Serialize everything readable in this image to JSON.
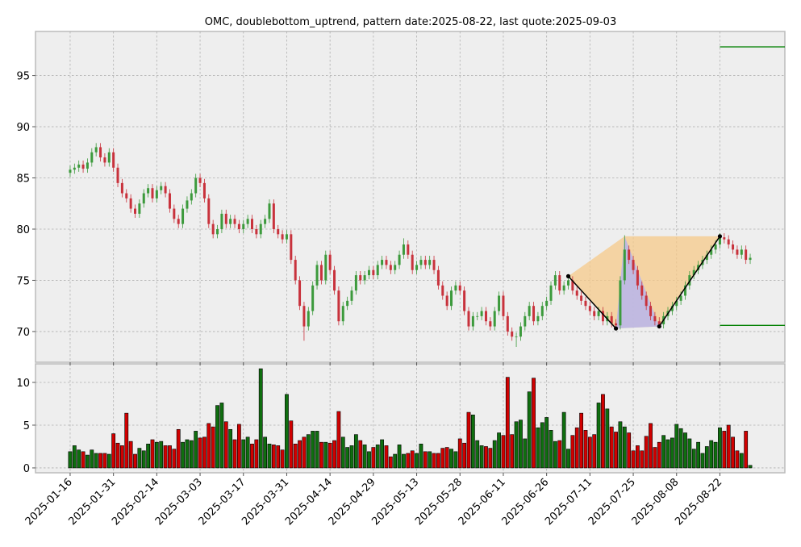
{
  "chart_data": {
    "type": "candlestick",
    "title": "OMC, doublebottom_uptrend, pattern date:2025-08-22, last quote:2025-09-03",
    "x": [
      "2025-01-16",
      "2025-01-17",
      "2025-01-21",
      "2025-01-22",
      "2025-01-23",
      "2025-01-24",
      "2025-01-27",
      "2025-01-28",
      "2025-01-29",
      "2025-01-30",
      "2025-01-31",
      "2025-02-03",
      "2025-02-04",
      "2025-02-05",
      "2025-02-06",
      "2025-02-07",
      "2025-02-10",
      "2025-02-11",
      "2025-02-12",
      "2025-02-13",
      "2025-02-14",
      "2025-02-18",
      "2025-02-19",
      "2025-02-20",
      "2025-02-21",
      "2025-02-24",
      "2025-02-25",
      "2025-02-26",
      "2025-02-27",
      "2025-02-28",
      "2025-03-03",
      "2025-03-04",
      "2025-03-05",
      "2025-03-06",
      "2025-03-07",
      "2025-03-10",
      "2025-03-11",
      "2025-03-12",
      "2025-03-13",
      "2025-03-14",
      "2025-03-17",
      "2025-03-18",
      "2025-03-19",
      "2025-03-20",
      "2025-03-21",
      "2025-03-24",
      "2025-03-25",
      "2025-03-26",
      "2025-03-27",
      "2025-03-28",
      "2025-03-31",
      "2025-04-01",
      "2025-04-02",
      "2025-04-03",
      "2025-04-04",
      "2025-04-07",
      "2025-04-08",
      "2025-04-09",
      "2025-04-10",
      "2025-04-11",
      "2025-04-14",
      "2025-04-15",
      "2025-04-16",
      "2025-04-17",
      "2025-04-21",
      "2025-04-22",
      "2025-04-23",
      "2025-04-24",
      "2025-04-25",
      "2025-04-28",
      "2025-04-29",
      "2025-04-30",
      "2025-05-01",
      "2025-05-02",
      "2025-05-05",
      "2025-05-06",
      "2025-05-07",
      "2025-05-08",
      "2025-05-09",
      "2025-05-12",
      "2025-05-13",
      "2025-05-14",
      "2025-05-15",
      "2025-05-16",
      "2025-05-19",
      "2025-05-20",
      "2025-05-21",
      "2025-05-22",
      "2025-05-23",
      "2025-05-27",
      "2025-05-28",
      "2025-05-29",
      "2025-05-30",
      "2025-06-02",
      "2025-06-03",
      "2025-06-04",
      "2025-06-05",
      "2025-06-06",
      "2025-06-09",
      "2025-06-10",
      "2025-06-11",
      "2025-06-12",
      "2025-06-13",
      "2025-06-16",
      "2025-06-17",
      "2025-06-18",
      "2025-06-20",
      "2025-06-23",
      "2025-06-24",
      "2025-06-25",
      "2025-06-26",
      "2025-06-27",
      "2025-06-30",
      "2025-07-01",
      "2025-07-02",
      "2025-07-03",
      "2025-07-07",
      "2025-07-08",
      "2025-07-09",
      "2025-07-10",
      "2025-07-11",
      "2025-07-14",
      "2025-07-15",
      "2025-07-16",
      "2025-07-17",
      "2025-07-18",
      "2025-07-21",
      "2025-07-22",
      "2025-07-23",
      "2025-07-24",
      "2025-07-25",
      "2025-07-28",
      "2025-07-29",
      "2025-07-30",
      "2025-07-31",
      "2025-08-01",
      "2025-08-04",
      "2025-08-05",
      "2025-08-06",
      "2025-08-07",
      "2025-08-08",
      "2025-08-11",
      "2025-08-12",
      "2025-08-13",
      "2025-08-14",
      "2025-08-15",
      "2025-08-18",
      "2025-08-19",
      "2025-08-20",
      "2025-08-21",
      "2025-08-22",
      "2025-08-25",
      "2025-08-26",
      "2025-08-27",
      "2025-08-28",
      "2025-08-29",
      "2025-09-02",
      "2025-09-03"
    ],
    "open": [
      85.5,
      85.8,
      86.0,
      86.3,
      85.9,
      86.5,
      87.5,
      88.0,
      87.0,
      86.5,
      87.5,
      86.0,
      84.5,
      83.5,
      83.0,
      82.0,
      81.5,
      82.5,
      83.5,
      84.0,
      83.0,
      83.8,
      84.2,
      83.5,
      82.0,
      81.0,
      80.5,
      82.0,
      82.8,
      83.5,
      85.0,
      84.5,
      83.0,
      80.5,
      79.5,
      80.0,
      81.5,
      80.5,
      81.0,
      80.5,
      80.0,
      80.5,
      81.0,
      80.0,
      79.5,
      80.5,
      81.0,
      82.5,
      80.0,
      79.5,
      79.0,
      79.5,
      77.0,
      75.0,
      72.5,
      70.5,
      72.0,
      74.5,
      76.5,
      75.0,
      77.5,
      76.0,
      74.0,
      71.0,
      72.5,
      73.0,
      74.0,
      75.5,
      75.0,
      75.5,
      76.0,
      75.5,
      76.5,
      77.0,
      76.5,
      76.0,
      76.5,
      77.5,
      78.5,
      77.5,
      76.0,
      76.5,
      77.0,
      76.5,
      77.0,
      76.0,
      74.5,
      73.5,
      72.5,
      74.0,
      74.5,
      74.0,
      72.0,
      70.5,
      71.5,
      71.5,
      72.0,
      71.0,
      70.5,
      72.0,
      73.5,
      71.5,
      70.0,
      69.5,
      69.5,
      70.5,
      71.5,
      72.5,
      71.0,
      71.5,
      72.5,
      73.0,
      74.5,
      75.5,
      74.0,
      74.5,
      75.0,
      74.0,
      73.5,
      73.0,
      72.5,
      72.0,
      71.5,
      72.0,
      71.0,
      71.5,
      70.8,
      70.6,
      75.0,
      78.0,
      77.0,
      76.0,
      74.5,
      73.5,
      72.5,
      71.5,
      71.0,
      70.7,
      71.5,
      72.0,
      72.5,
      73.0,
      73.5,
      74.5,
      75.5,
      76.0,
      76.5,
      77.0,
      77.5,
      78.0,
      78.5,
      79.2,
      79.0,
      78.5,
      78.0,
      77.5,
      78.0,
      77.0
    ],
    "high": [
      86.2,
      86.4,
      86.7,
      86.7,
      86.9,
      87.9,
      88.4,
      88.4,
      87.4,
      87.9,
      87.9,
      86.4,
      84.9,
      83.9,
      83.4,
      82.4,
      82.9,
      83.9,
      84.4,
      84.4,
      84.2,
      84.6,
      84.6,
      83.9,
      82.4,
      81.4,
      82.4,
      83.2,
      83.9,
      85.4,
      85.4,
      84.9,
      83.4,
      80.9,
      80.4,
      81.9,
      81.9,
      81.4,
      81.4,
      80.9,
      80.9,
      81.4,
      81.4,
      80.4,
      80.9,
      81.4,
      82.9,
      82.9,
      80.4,
      79.9,
      79.9,
      79.9,
      77.4,
      75.4,
      72.9,
      72.4,
      74.9,
      76.9,
      76.9,
      77.9,
      77.9,
      76.4,
      74.4,
      72.9,
      73.4,
      74.4,
      75.9,
      75.9,
      75.9,
      76.4,
      76.4,
      76.9,
      77.4,
      77.4,
      76.9,
      76.9,
      77.9,
      79.1,
      78.9,
      77.9,
      76.9,
      77.4,
      77.4,
      77.4,
      77.4,
      76.4,
      74.9,
      73.9,
      74.4,
      74.9,
      74.9,
      74.4,
      72.4,
      71.9,
      71.9,
      72.4,
      72.4,
      71.4,
      72.4,
      73.9,
      73.9,
      71.9,
      70.4,
      69.9,
      70.9,
      71.9,
      72.9,
      72.9,
      71.9,
      72.9,
      73.4,
      74.9,
      75.9,
      75.9,
      74.9,
      75.4,
      75.4,
      74.4,
      73.9,
      73.4,
      72.9,
      72.4,
      72.4,
      72.4,
      71.9,
      71.9,
      71.2,
      75.4,
      79.4,
      78.4,
      77.4,
      76.4,
      74.9,
      73.9,
      72.9,
      71.9,
      71.4,
      71.9,
      72.4,
      72.9,
      73.4,
      73.9,
      74.9,
      75.9,
      76.4,
      76.9,
      77.4,
      77.9,
      78.4,
      78.9,
      79.6,
      79.6,
      79.4,
      78.9,
      78.4,
      78.4,
      78.4,
      77.6
    ],
    "low": [
      85.1,
      85.4,
      85.6,
      85.5,
      85.5,
      86.1,
      87.1,
      86.6,
      86.1,
      86.1,
      85.6,
      84.1,
      83.1,
      82.6,
      81.6,
      81.1,
      81.1,
      82.1,
      83.1,
      82.6,
      82.6,
      83.4,
      83.1,
      81.6,
      80.6,
      80.1,
      80.1,
      81.6,
      82.4,
      83.1,
      84.1,
      82.6,
      80.1,
      79.1,
      79.1,
      79.6,
      80.1,
      80.1,
      80.1,
      79.6,
      79.6,
      80.1,
      79.6,
      79.1,
      79.1,
      80.1,
      80.6,
      79.6,
      79.1,
      78.6,
      78.6,
      76.6,
      74.6,
      72.1,
      69.1,
      70.1,
      71.6,
      74.1,
      74.6,
      74.6,
      75.6,
      73.6,
      70.6,
      70.6,
      72.1,
      72.6,
      73.6,
      74.6,
      74.6,
      75.1,
      75.1,
      75.1,
      76.1,
      76.1,
      75.6,
      75.6,
      76.1,
      77.1,
      77.1,
      75.6,
      75.6,
      76.1,
      76.1,
      76.1,
      75.6,
      74.1,
      73.1,
      72.1,
      72.1,
      73.6,
      73.6,
      71.6,
      70.1,
      70.1,
      71.1,
      71.1,
      70.6,
      70.1,
      70.1,
      71.6,
      71.1,
      69.6,
      69.1,
      68.5,
      69.1,
      70.1,
      71.1,
      70.6,
      70.6,
      71.1,
      72.1,
      72.6,
      74.1,
      73.6,
      73.6,
      74.1,
      73.6,
      73.1,
      72.6,
      72.1,
      71.6,
      71.1,
      71.1,
      70.6,
      70.6,
      70.4,
      70.2,
      70.2,
      74.6,
      76.6,
      75.6,
      74.1,
      73.1,
      72.1,
      71.1,
      70.6,
      70.3,
      70.3,
      71.1,
      71.6,
      72.1,
      72.6,
      73.1,
      74.1,
      75.1,
      75.6,
      76.1,
      76.6,
      77.1,
      77.6,
      78.1,
      78.6,
      78.1,
      77.6,
      77.1,
      77.1,
      76.6,
      76.6
    ],
    "close": [
      85.8,
      86.0,
      86.3,
      85.9,
      86.5,
      87.5,
      88.0,
      87.0,
      86.5,
      87.5,
      86.0,
      84.5,
      83.5,
      83.0,
      82.0,
      81.5,
      82.5,
      83.5,
      84.0,
      83.0,
      83.8,
      84.2,
      83.5,
      82.0,
      81.0,
      80.5,
      82.0,
      82.8,
      83.5,
      85.0,
      84.5,
      83.0,
      80.5,
      79.5,
      80.0,
      81.5,
      80.5,
      81.0,
      80.5,
      80.0,
      80.5,
      81.0,
      80.0,
      79.5,
      80.5,
      81.0,
      82.5,
      80.0,
      79.5,
      79.0,
      79.5,
      77.0,
      75.0,
      72.5,
      70.5,
      72.0,
      74.5,
      76.5,
      75.0,
      77.5,
      76.0,
      74.0,
      71.0,
      72.5,
      73.0,
      74.0,
      75.5,
      75.0,
      75.5,
      76.0,
      75.5,
      76.5,
      77.0,
      76.5,
      76.0,
      76.5,
      77.5,
      78.5,
      77.5,
      76.0,
      76.5,
      77.0,
      76.5,
      77.0,
      76.0,
      74.5,
      73.5,
      72.5,
      74.0,
      74.5,
      74.0,
      72.0,
      70.5,
      71.5,
      71.5,
      72.0,
      71.0,
      70.5,
      72.0,
      73.5,
      71.5,
      70.0,
      69.5,
      69.5,
      70.5,
      71.5,
      72.5,
      71.0,
      71.5,
      72.5,
      73.0,
      74.5,
      75.5,
      74.0,
      74.5,
      75.0,
      74.0,
      73.5,
      73.0,
      72.5,
      72.0,
      71.5,
      72.0,
      71.0,
      71.5,
      70.8,
      70.6,
      75.0,
      78.0,
      77.0,
      76.0,
      74.5,
      73.5,
      72.5,
      71.5,
      71.0,
      70.7,
      71.5,
      72.0,
      72.5,
      73.0,
      73.5,
      74.5,
      75.5,
      76.0,
      76.5,
      77.0,
      77.5,
      78.0,
      78.5,
      79.2,
      79.0,
      78.5,
      78.0,
      77.5,
      78.0,
      77.0,
      77.2
    ],
    "up_color": "#3c9a3c",
    "down_color": "#c8323c",
    "ylim": [
      67.0,
      99.3
    ],
    "yticks": [
      70,
      75,
      80,
      85,
      90,
      95
    ],
    "xticks": [
      "2025-01-16",
      "2025-01-31",
      "2025-02-14",
      "2025-03-03",
      "2025-03-17",
      "2025-03-31",
      "2025-04-14",
      "2025-04-29",
      "2025-05-13",
      "2025-05-28",
      "2025-06-11",
      "2025-06-26",
      "2025-07-11",
      "2025-07-25",
      "2025-08-08",
      "2025-08-22"
    ],
    "grid": true,
    "volume": {
      "values": [
        1.9,
        2.6,
        2.1,
        1.9,
        1.5,
        2.1,
        1.7,
        1.7,
        1.7,
        1.6,
        4.0,
        2.9,
        2.6,
        6.4,
        3.1,
        1.6,
        2.3,
        2.0,
        2.8,
        3.3,
        3.0,
        3.1,
        2.6,
        2.6,
        2.2,
        4.5,
        3.0,
        3.3,
        3.2,
        4.3,
        3.5,
        3.6,
        5.2,
        4.8,
        7.3,
        7.6,
        5.4,
        4.5,
        3.3,
        5.1,
        3.3,
        3.6,
        2.8,
        3.3,
        11.6,
        3.6,
        2.8,
        2.7,
        2.6,
        2.1,
        8.6,
        5.5,
        2.8,
        3.2,
        3.6,
        3.9,
        4.3,
        4.3,
        3.0,
        3.0,
        2.9,
        3.2,
        6.6,
        3.6,
        2.4,
        2.6,
        3.9,
        3.2,
        2.7,
        1.9,
        2.4,
        2.7,
        3.3,
        2.6,
        1.3,
        1.6,
        2.7,
        1.6,
        1.7,
        2.0,
        1.7,
        2.8,
        1.9,
        1.9,
        1.7,
        1.7,
        2.3,
        2.4,
        2.2,
        1.9,
        3.4,
        2.9,
        6.5,
        6.2,
        3.2,
        2.6,
        2.5,
        2.3,
        3.2,
        4.1,
        3.8,
        10.6,
        3.9,
        5.4,
        5.6,
        3.4,
        8.9,
        10.5,
        4.7,
        5.3,
        5.9,
        4.4,
        3.1,
        3.2,
        6.5,
        2.2,
        3.8,
        4.7,
        6.4,
        4.4,
        3.6,
        3.9,
        7.6,
        8.6,
        6.9,
        4.8,
        4.2,
        5.4,
        4.8,
        4.1,
        2.0,
        2.6,
        2.0,
        3.7,
        5.2,
        2.4,
        3.0,
        3.8,
        3.3,
        3.5,
        5.1,
        4.6,
        4.1,
        3.4,
        2.2,
        3.0,
        1.7,
        2.5,
        3.2,
        3.0,
        4.7,
        4.3,
        5.0,
        3.6,
        2.0,
        1.7,
        4.3,
        0.3
      ],
      "up_color": "#0f6e0f",
      "down_color": "#d00000",
      "ylim": [
        -0.57,
        12.17
      ],
      "yticks": [
        0,
        5,
        10
      ]
    },
    "pattern": {
      "points": [
        {
          "x": "2025-07-03",
          "y": 75.4
        },
        {
          "x": "2025-07-21",
          "y": 70.3
        },
        {
          "x": "2025-08-04",
          "y": 70.5
        },
        {
          "x": "2025-08-22",
          "y": 79.3
        }
      ],
      "peak": {
        "x": "2025-07-23",
        "y": 79.3
      },
      "fill_color": "#f5c98a",
      "peak_fill_color": "#b4b4f0",
      "line_color": "#000000"
    },
    "levels": {
      "start": "2025-08-22",
      "values": [
        97.8,
        70.6
      ],
      "color": "#008000"
    }
  }
}
